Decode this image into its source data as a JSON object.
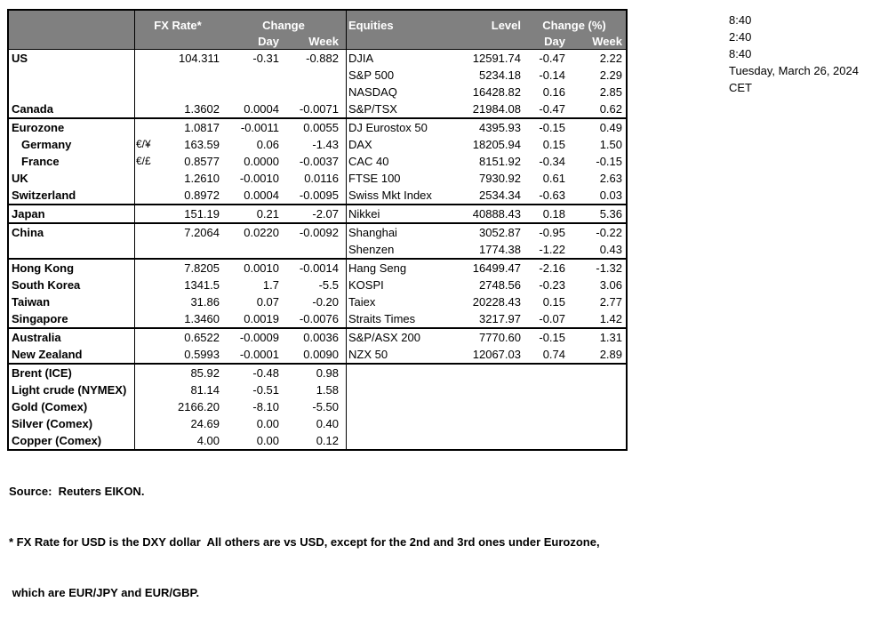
{
  "header": {
    "fx_rate": "FX Rate*",
    "fx_change": "Change",
    "fx_day": "Day",
    "fx_week": "Week",
    "equities": "Equities",
    "level": "Level",
    "eq_change": "Change (%)",
    "eq_day": "Day",
    "eq_week": "Week"
  },
  "colors": {
    "header_bg": "#808080",
    "header_text": "#ffffff",
    "border": "#000000"
  },
  "datetime_panel": {
    "lines": [
      "8:40",
      "2:40",
      "8:40",
      "Tuesday, March 26, 2024",
      "CET"
    ]
  },
  "sections": [
    {
      "name": "us-canada",
      "rows": [
        {
          "fx": {
            "label": "US",
            "rate": "104.311",
            "day": "-0.31",
            "week": "-0.882"
          },
          "eq": {
            "name": "DJIA",
            "level": "12591.74",
            "day": "-0.47",
            "week": "2.22"
          }
        },
        {
          "fx": {},
          "eq": {
            "name": "S&P 500",
            "level": "5234.18",
            "day": "-0.14",
            "week": "2.29"
          }
        },
        {
          "fx": {},
          "eq": {
            "name": "NASDAQ",
            "level": "16428.82",
            "day": "0.16",
            "week": "2.85"
          }
        },
        {
          "fx": {
            "label": "Canada",
            "rate": "1.3602",
            "day": "0.0004",
            "week": "-0.0071"
          },
          "eq": {
            "name": "S&P/TSX",
            "level": "21984.08",
            "day": "-0.47",
            "week": "0.62"
          }
        }
      ]
    },
    {
      "name": "europe",
      "rows": [
        {
          "fx": {
            "label": "Eurozone",
            "rate": "1.0817",
            "day": "-0.0011",
            "week": "0.0055"
          },
          "eq": {
            "name": "DJ Eurostox 50",
            "level": "4395.93",
            "day": "-0.15",
            "week": "0.49"
          }
        },
        {
          "fx": {
            "label": "Germany",
            "indent": true,
            "pair": "€/¥",
            "rate": "163.59",
            "day": "0.06",
            "week": "-1.43"
          },
          "eq": {
            "name": "DAX",
            "level": "18205.94",
            "day": "0.15",
            "week": "1.50"
          }
        },
        {
          "fx": {
            "label": "France",
            "indent": true,
            "pair": "€/£",
            "rate": "0.8577",
            "day": "0.0000",
            "week": "-0.0037"
          },
          "eq": {
            "name": "CAC 40",
            "level": "8151.92",
            "day": "-0.34",
            "week": "-0.15"
          }
        },
        {
          "fx": {
            "label": "UK",
            "rate": "1.2610",
            "day": "-0.0010",
            "week": "0.0116"
          },
          "eq": {
            "name": "FTSE 100",
            "level": "7930.92",
            "day": "0.61",
            "week": "2.63"
          }
        },
        {
          "fx": {
            "label": "Switzerland",
            "rate": "0.8972",
            "day": "0.0004",
            "week": "-0.0095"
          },
          "eq": {
            "name": "Swiss Mkt Index",
            "level": "2534.34",
            "day": "-0.63",
            "week": "0.03"
          }
        }
      ]
    },
    {
      "name": "japan",
      "rows": [
        {
          "fx": {
            "label": "Japan",
            "rate": "151.19",
            "day": "0.21",
            "week": "-2.07"
          },
          "eq": {
            "name": "Nikkei",
            "level": "40888.43",
            "day": "0.18",
            "week": "5.36"
          }
        }
      ]
    },
    {
      "name": "china",
      "rows": [
        {
          "fx": {
            "label": "China",
            "rate": "7.2064",
            "day": "0.0220",
            "week": "-0.0092"
          },
          "eq": {
            "name": "Shanghai",
            "level": "3052.87",
            "day": "-0.95",
            "week": "-0.22"
          }
        },
        {
          "fx": {},
          "eq": {
            "name": "Shenzen",
            "level": "1774.38",
            "day": "-1.22",
            "week": "0.43"
          }
        }
      ]
    },
    {
      "name": "asia",
      "rows": [
        {
          "fx": {
            "label": "Hong Kong",
            "rate": "7.8205",
            "day": "0.0010",
            "week": "-0.0014"
          },
          "eq": {
            "name": "Hang Seng",
            "level": "16499.47",
            "day": "-2.16",
            "week": "-1.32"
          }
        },
        {
          "fx": {
            "label": "South Korea",
            "rate": "1341.5",
            "day": "1.7",
            "week": "-5.5"
          },
          "eq": {
            "name": "KOSPI",
            "level": "2748.56",
            "day": "-0.23",
            "week": "3.06"
          }
        },
        {
          "fx": {
            "label": "Taiwan",
            "rate": "31.86",
            "day": "0.07",
            "week": "-0.20"
          },
          "eq": {
            "name": "Taiex",
            "level": "20228.43",
            "day": "0.15",
            "week": "2.77"
          }
        },
        {
          "fx": {
            "label": "Singapore",
            "rate": "1.3460",
            "day": "0.0019",
            "week": "-0.0076"
          },
          "eq": {
            "name": "Straits Times",
            "level": "3217.97",
            "day": "-0.07",
            "week": "1.42"
          }
        }
      ]
    },
    {
      "name": "oceania",
      "rows": [
        {
          "fx": {
            "label": "Australia",
            "rate": "0.6522",
            "day": "-0.0009",
            "week": "0.0036"
          },
          "eq": {
            "name": "S&P/ASX  200",
            "level": "7770.60",
            "day": "-0.15",
            "week": "1.31"
          }
        },
        {
          "fx": {
            "label": "New Zealand",
            "rate": "0.5993",
            "day": "-0.0001",
            "week": "0.0090"
          },
          "eq": {
            "name": "NZX 50",
            "level": "12067.03",
            "day": "0.74",
            "week": "2.89"
          }
        }
      ]
    },
    {
      "name": "commodities",
      "rows": [
        {
          "fx": {
            "label": "Brent (ICE)",
            "rate": "85.92",
            "day": "-0.48",
            "week": "0.98"
          },
          "eq": {}
        },
        {
          "fx": {
            "label": "Light crude (NYMEX)",
            "rate": "81.14",
            "day": "-0.51",
            "week": "1.58"
          },
          "eq": {}
        },
        {
          "fx": {
            "label": "Gold (Comex)",
            "rate": "2166.20",
            "day": "-8.10",
            "week": "-5.50"
          },
          "eq": {}
        },
        {
          "fx": {
            "label": "Silver (Comex)",
            "rate": "24.69",
            "day": "0.00",
            "week": "0.40"
          },
          "eq": {}
        },
        {
          "fx": {
            "label": "Copper (Comex)",
            "rate": "4.00",
            "day": "0.00",
            "week": "0.12"
          },
          "eq": {}
        }
      ]
    }
  ],
  "footer": {
    "source": "Source:  Reuters EIKON.",
    "note1": "* FX Rate for USD is the DXY dollar  All others are vs USD, except for the 2nd and 3rd ones under Eurozone,",
    "note2": " which are EUR/JPY and EUR/GBP."
  }
}
